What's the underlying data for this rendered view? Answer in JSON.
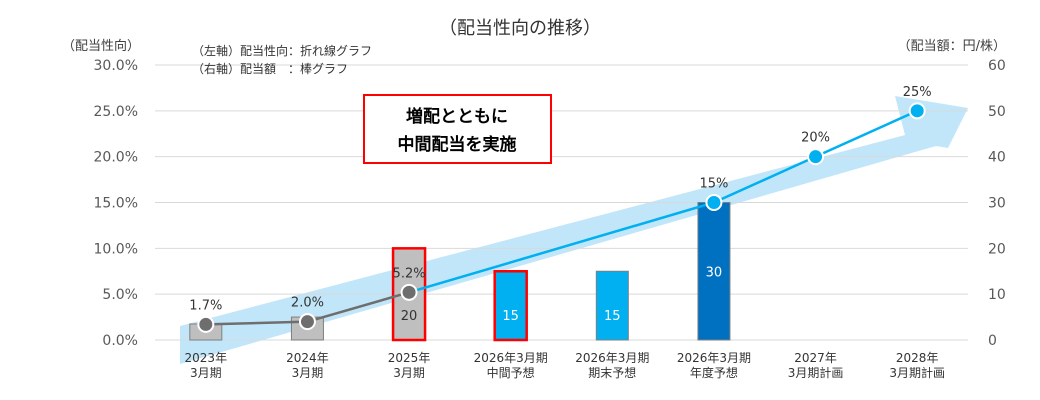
{
  "chart_data": {
    "type": "bar",
    "title": "（配当性向の推移）",
    "left_axis_label": "（配当性向）",
    "right_axis_label": "（配当額：円/株）",
    "legend": [
      "（左軸）配当性向：折れ線グラフ",
      "（右軸）配当額　：棒グラフ"
    ],
    "annotation": [
      "増配とともに",
      "中間配当を実施"
    ],
    "categories": [
      [
        "2023年",
        "3月期"
      ],
      [
        "2024年",
        "3月期"
      ],
      [
        "2025年",
        "3月期"
      ],
      [
        "2026年3月期",
        "中間予想"
      ],
      [
        "2026年3月期",
        "期末予想"
      ],
      [
        "2026年3月期",
        "年度予想"
      ],
      [
        "2027年",
        "3月期計画"
      ],
      [
        "2028年",
        "3月期計画"
      ]
    ],
    "left_ticks": [
      "0.0%",
      "5.0%",
      "10.0%",
      "15.0%",
      "20.0%",
      "25.0%",
      "30.0%"
    ],
    "right_ticks": [
      "0",
      "10",
      "20",
      "30",
      "40",
      "50",
      "60"
    ],
    "ylim_left": [
      0,
      30
    ],
    "ylim_right": [
      0,
      60
    ],
    "series": [
      {
        "name": "配当額",
        "axis": "right",
        "kind": "bar",
        "values": [
          3.5,
          5,
          20,
          15,
          15,
          30,
          null,
          null
        ],
        "labels": [
          "",
          "",
          "20",
          "15",
          "15",
          "30",
          "",
          ""
        ],
        "colors": [
          "#bfbfbf",
          "#bfbfbf",
          "#bfbfbf",
          "#00b0f0",
          "#00b0f0",
          "#0070c0",
          "",
          ""
        ],
        "highlight": [
          false,
          false,
          true,
          true,
          false,
          false,
          false,
          false
        ]
      },
      {
        "name": "配当性向",
        "axis": "left",
        "kind": "line",
        "values": [
          1.7,
          2.0,
          5.2,
          null,
          null,
          15,
          20,
          25
        ],
        "labels": [
          "1.7%",
          "2.0%",
          "5.2%",
          "",
          "",
          "15%",
          "20%",
          "25%"
        ],
        "segment_colors": [
          "#6e6e6e",
          "#6e6e6e",
          "#1aa3e0",
          "#1aa3e0"
        ]
      }
    ],
    "colors": {
      "arrow": "#b7e2f8",
      "grid": "#d9d9d9",
      "axis_text": "#595959",
      "highlight_border": "#ff0000",
      "gray_marker": "#6e6e6e",
      "blue_marker": "#00b0f0"
    }
  }
}
